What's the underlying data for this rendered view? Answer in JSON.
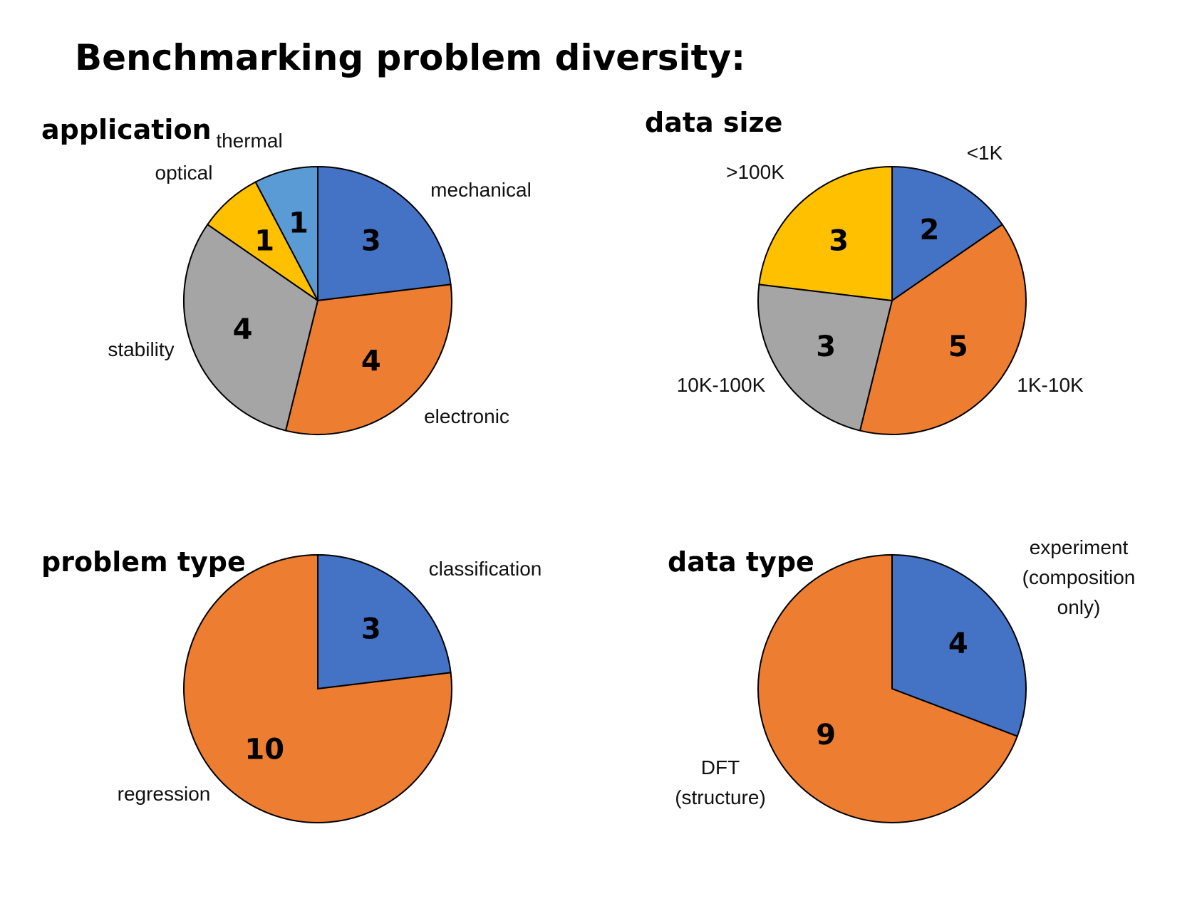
{
  "title": "Benchmarking problem diversity:",
  "colors": {
    "blue": "#4472C4",
    "orange": "#ED7D31",
    "gray": "#A5A5A5",
    "yellow": "#FFC000",
    "lightblue": "#5B9BD5"
  },
  "chart_data": [
    {
      "type": "pie",
      "title": "application",
      "slices": [
        {
          "label": "mechanical",
          "value": 3,
          "color": "#4472C4"
        },
        {
          "label": "electronic",
          "value": 4,
          "color": "#ED7D31"
        },
        {
          "label": "stability",
          "value": 4,
          "color": "#A5A5A5"
        },
        {
          "label": "optical",
          "value": 1,
          "color": "#FFC000"
        },
        {
          "label": "thermal",
          "value": 1,
          "color": "#5B9BD5"
        }
      ]
    },
    {
      "type": "pie",
      "title": "data size",
      "slices": [
        {
          "label": "<1K",
          "value": 2,
          "color": "#4472C4"
        },
        {
          "label": "1K-10K",
          "value": 5,
          "color": "#ED7D31"
        },
        {
          "label": "10K-100K",
          "value": 3,
          "color": "#A5A5A5"
        },
        {
          "label": ">100K",
          "value": 3,
          "color": "#FFC000"
        }
      ]
    },
    {
      "type": "pie",
      "title": "problem type",
      "slices": [
        {
          "label": "classification",
          "value": 3,
          "color": "#4472C4"
        },
        {
          "label": "regression",
          "value": 10,
          "color": "#ED7D31"
        }
      ]
    },
    {
      "type": "pie",
      "title": "data type",
      "slices": [
        {
          "label": "experiment\n(composition\nonly)",
          "value": 4,
          "color": "#4472C4"
        },
        {
          "label": "DFT\n(structure)",
          "value": 9,
          "color": "#ED7D31"
        }
      ]
    }
  ]
}
